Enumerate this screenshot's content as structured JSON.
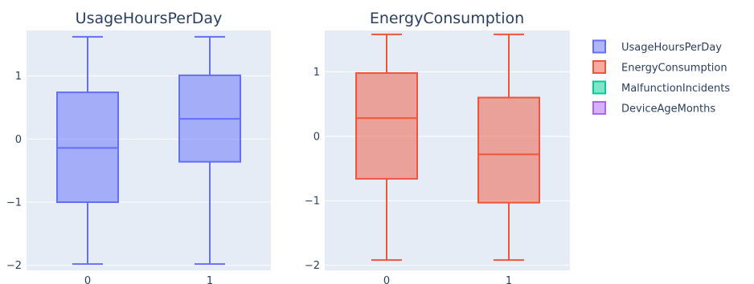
{
  "chart_data": [
    {
      "type": "box",
      "title": "UsageHoursPerDay",
      "categories": [
        "0",
        "1"
      ],
      "color": "#636efa",
      "ylim": [
        -2.08,
        1.72
      ],
      "yticks": [
        -2,
        -1,
        0,
        1
      ],
      "boxes": [
        {
          "x": "0",
          "min": -1.98,
          "q1": -1.0,
          "median": -0.14,
          "q3": 0.74,
          "max": 1.62
        },
        {
          "x": "1",
          "min": -1.98,
          "q1": -0.36,
          "median": 0.32,
          "q3": 1.01,
          "max": 1.62
        }
      ]
    },
    {
      "type": "box",
      "title": "EnergyConsumption",
      "categories": [
        "0",
        "1"
      ],
      "color": "#ef553b",
      "ylim": [
        -2.08,
        1.64
      ],
      "yticks": [
        -2,
        -1,
        0,
        1
      ],
      "boxes": [
        {
          "x": "0",
          "min": -1.92,
          "q1": -0.66,
          "median": 0.28,
          "q3": 0.98,
          "max": 1.58
        },
        {
          "x": "1",
          "min": -1.92,
          "q1": -1.03,
          "median": -0.28,
          "q3": 0.6,
          "max": 1.58
        }
      ]
    }
  ],
  "legend": {
    "position": "right",
    "items": [
      {
        "label": "UsageHoursPerDay",
        "color": "#636efa"
      },
      {
        "label": "EnergyConsumption",
        "color": "#ef553b"
      },
      {
        "label": "MalfunctionIncidents",
        "color": "#00cc96"
      },
      {
        "label": "DeviceAgeMonths",
        "color": "#ab63fa"
      }
    ]
  }
}
